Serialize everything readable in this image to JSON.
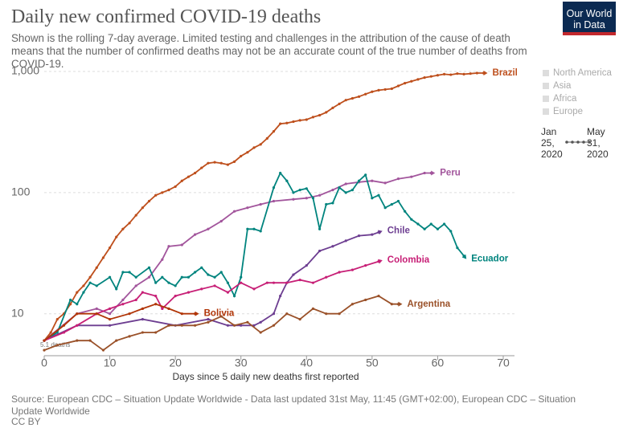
{
  "chart_data": {
    "type": "line",
    "title": "Daily new confirmed COVID-19 deaths",
    "subtitle": "Shown is the rolling 7-day average. Limited testing and challenges in the attribution of the cause of death means that the number of confirmed deaths may not be an accurate count of the true number of deaths from COVID-19.",
    "logo": "Our World in Data",
    "x_label": "Days since 5 daily new deaths first reported",
    "source": "Source: European CDC – Situation Update Worldwide - Data last updated 31st May, 11:45 (GMT+02:00), European CDC – Situation Update Worldwide",
    "license": "CC BY",
    "annotation": "5.1 deaths",
    "region_legend": [
      "North America",
      "Asia",
      "Africa",
      "Europe"
    ],
    "time_range": [
      "Jan 25, 2020",
      "May 31, 2020"
    ],
    "log_y": true,
    "grid": true,
    "xlim": [
      0,
      70
    ],
    "xticks": [
      0,
      10,
      20,
      30,
      40,
      50,
      60,
      70
    ],
    "ylim": [
      4.5,
      1000
    ],
    "yticks": [
      10,
      100,
      {
        "value": 1000,
        "label": "1,000"
      }
    ],
    "series": [
      {
        "name": "Brazil",
        "color": "#be4f1c",
        "x": [
          0,
          1,
          2,
          3,
          4,
          5,
          6,
          7,
          8,
          9,
          10,
          11,
          12,
          13,
          14,
          15,
          16,
          17,
          18,
          19,
          20,
          21,
          22,
          23,
          24,
          25,
          26,
          27,
          28,
          29,
          30,
          31,
          32,
          33,
          34,
          35,
          36,
          37,
          38,
          39,
          40,
          41,
          42,
          43,
          44,
          45,
          46,
          47,
          48,
          49,
          50,
          51,
          52,
          53,
          54,
          55,
          56,
          57,
          58,
          59,
          60,
          61,
          62,
          63,
          64,
          65,
          66,
          67
        ],
        "values": [
          6,
          7,
          9,
          10,
          12,
          15,
          17,
          20,
          24,
          29,
          35,
          43,
          50,
          56,
          65,
          75,
          85,
          95,
          100,
          105,
          112,
          125,
          135,
          145,
          160,
          175,
          178,
          175,
          170,
          180,
          200,
          215,
          235,
          250,
          280,
          320,
          370,
          375,
          385,
          395,
          400,
          420,
          435,
          460,
          500,
          540,
          580,
          600,
          620,
          650,
          680,
          700,
          710,
          720,
          760,
          800,
          830,
          860,
          890,
          910,
          930,
          950,
          940,
          960,
          950,
          960,
          970,
          970
        ]
      },
      {
        "name": "Peru",
        "color": "#a2559c",
        "x": [
          0,
          5,
          8,
          10,
          12,
          14,
          16,
          18,
          19,
          21,
          23,
          25,
          27,
          29,
          31,
          33,
          35,
          38,
          40,
          42,
          44,
          46,
          48,
          50,
          52,
          54,
          56,
          58,
          59
        ],
        "values": [
          6,
          10,
          11,
          10,
          13,
          17,
          20,
          28,
          36,
          37,
          45,
          50,
          58,
          70,
          75,
          80,
          85,
          88,
          90,
          95,
          105,
          118,
          122,
          125,
          120,
          130,
          135,
          145,
          145
        ]
      },
      {
        "name": "Ecuador",
        "color": "#00847e",
        "x": [
          0,
          2,
          4,
          5,
          6,
          7,
          8,
          10,
          11,
          12,
          13,
          14,
          16,
          17,
          18,
          19,
          20,
          21,
          22,
          23,
          24,
          25,
          26,
          27,
          28,
          29,
          30,
          31,
          32,
          33,
          35,
          36,
          37,
          38,
          39,
          40,
          41,
          42,
          43,
          44,
          45,
          46,
          47,
          48,
          49,
          50,
          51,
          52,
          53,
          54,
          55,
          56,
          57,
          58,
          59,
          60,
          61,
          62,
          63,
          64
        ],
        "values": [
          6,
          7,
          13,
          12,
          15,
          18,
          17,
          20,
          16,
          22,
          22,
          20,
          24,
          18,
          20,
          18,
          17,
          20,
          20,
          22,
          24,
          21,
          20,
          22,
          18,
          14,
          20,
          50,
          50,
          48,
          110,
          145,
          125,
          100,
          105,
          108,
          90,
          50,
          80,
          82,
          110,
          100,
          105,
          125,
          140,
          90,
          95,
          75,
          80,
          85,
          70,
          60,
          55,
          50,
          55,
          50,
          55,
          48,
          35,
          30
        ]
      },
      {
        "name": "Chile",
        "color": "#6d3e91",
        "x": [
          0,
          5,
          10,
          15,
          20,
          25,
          28,
          30,
          32,
          33,
          35,
          36,
          37,
          38,
          40,
          42,
          44,
          46,
          48,
          50,
          51
        ],
        "values": [
          6,
          8,
          8,
          9,
          8,
          9,
          8,
          8,
          8,
          8.5,
          10,
          14,
          18,
          21,
          25,
          33,
          36,
          40,
          44,
          45,
          47
        ]
      },
      {
        "name": "Colombia",
        "color": "#c71f76",
        "x": [
          0,
          3,
          5,
          8,
          10,
          12,
          14,
          15,
          17,
          18,
          20,
          22,
          24,
          26,
          28,
          30,
          32,
          34,
          35,
          37,
          39,
          41,
          43,
          45,
          47,
          49,
          51
        ],
        "values": [
          6,
          7,
          8,
          10,
          11,
          12,
          13,
          15,
          14,
          11,
          14,
          15,
          16,
          17,
          15,
          18,
          16,
          18,
          18,
          18,
          19,
          18,
          20,
          22,
          23,
          25,
          27
        ]
      },
      {
        "name": "Argentina",
        "color": "#9a5129",
        "x": [
          0,
          2,
          5,
          7,
          9,
          11,
          13,
          15,
          17,
          19,
          21,
          23,
          25,
          27,
          29,
          31,
          33,
          35,
          37,
          39,
          41,
          43,
          45,
          47,
          49,
          51,
          53,
          54
        ],
        "values": [
          5,
          5.5,
          6,
          6,
          5,
          6,
          6.5,
          7,
          7,
          8,
          8,
          8,
          8.5,
          9.5,
          8,
          8.5,
          7,
          8,
          10,
          9,
          11,
          10,
          10,
          12,
          13,
          14,
          12,
          12
        ]
      },
      {
        "name": "Bolivia",
        "color": "#b13507",
        "x": [
          0,
          3,
          5,
          8,
          10,
          13,
          15,
          17,
          19,
          21,
          23
        ],
        "values": [
          6,
          8,
          10,
          10,
          9,
          10,
          11,
          12,
          11,
          10,
          10
        ]
      }
    ]
  }
}
